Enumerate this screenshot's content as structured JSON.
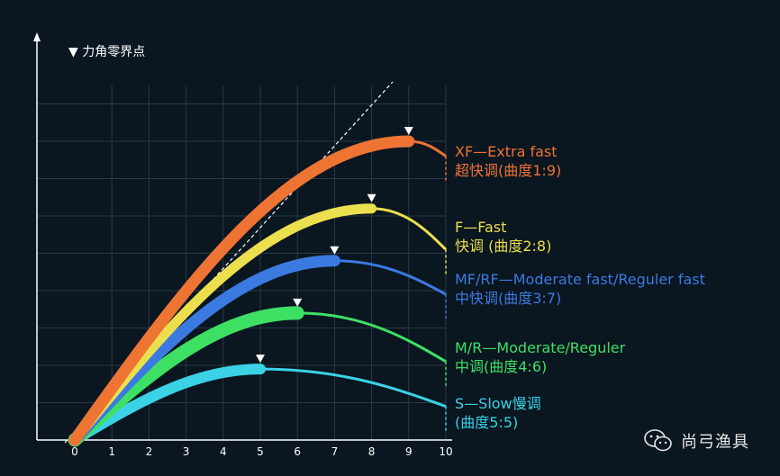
{
  "chart_data": {
    "type": "line",
    "title": "▼ 力角零界点",
    "x": [
      0,
      1,
      2,
      3,
      4,
      5,
      6,
      7,
      8,
      9,
      10
    ],
    "xlim": [
      0,
      10
    ],
    "ylim": [
      0,
      10
    ],
    "grid": true,
    "legend_position": "right",
    "series": [
      {
        "name": "XF—Extra fast",
        "sub": "超快调(曲度1:9)",
        "color": "#ee7434",
        "peak": [
          9,
          8.0
        ],
        "end": [
          10,
          7.6
        ],
        "width": 13
      },
      {
        "name": "F—Fast",
        "sub": "快调 (曲度2:8)",
        "color": "#ecdf4e",
        "peak": [
          8,
          6.2
        ],
        "end": [
          10,
          5.1
        ],
        "width": 11
      },
      {
        "name": "MF/RF—Moderate fast/Reguler fast",
        "sub": "中快调(曲度3:7)",
        "color": "#3b7ae0",
        "peak": [
          7,
          4.8
        ],
        "end": [
          10,
          3.9
        ],
        "width": 13
      },
      {
        "name": "M/R—Moderate/Reguler",
        "sub": "中调(曲度4:6)",
        "color": "#3ee064",
        "peak": [
          6,
          3.4
        ],
        "end": [
          10,
          2.1
        ],
        "width": 15
      },
      {
        "name": "S—Slow慢调",
        "sub": "(曲度5:5)",
        "color": "#3bd2e6",
        "peak": [
          5,
          1.9
        ],
        "end": [
          10,
          0.9
        ],
        "width": 12
      }
    ]
  },
  "watermark": {
    "text": "尚弓渔具",
    "icon": "wechat-icon"
  }
}
